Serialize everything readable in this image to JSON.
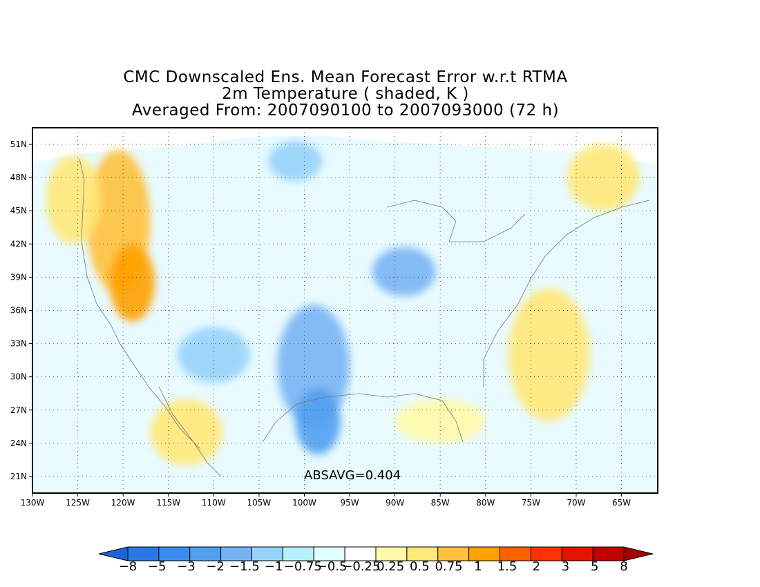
{
  "title": {
    "line1": "CMC Downscaled Ens. Mean Forecast Error w.r.t RTMA",
    "line2": "2m Temperature ( shaded, K )",
    "line3": "Averaged From: 2007090100 to 2007093000 (72 h)"
  },
  "annotation": "ABSAVG=0.404",
  "map": {
    "lon_range": [
      -130,
      -61
    ],
    "lat_range": [
      19.5,
      52.5
    ],
    "lon_labels": [
      "130W",
      "125W",
      "120W",
      "115W",
      "110W",
      "105W",
      "100W",
      "95W",
      "90W",
      "85W",
      "80W",
      "75W",
      "70W",
      "65W"
    ],
    "lon_values": [
      -130,
      -125,
      -120,
      -115,
      -110,
      -105,
      -100,
      -95,
      -90,
      -85,
      -80,
      -75,
      -70,
      -65
    ],
    "lat_labels": [
      "21N",
      "24N",
      "27N",
      "30N",
      "33N",
      "36N",
      "39N",
      "42N",
      "45N",
      "48N",
      "51N"
    ],
    "lat_values": [
      21,
      24,
      27,
      30,
      33,
      36,
      39,
      42,
      45,
      48,
      51
    ],
    "grid": true,
    "projection": "lat-lon"
  },
  "colorbar": {
    "labels": [
      "-8",
      "-5",
      "-3",
      "-2",
      "-1.5",
      "-1",
      "-0.75",
      "-0.5",
      "-0.25",
      "0.25",
      "0.5",
      "0.75",
      "1",
      "1.5",
      "2",
      "3",
      "5",
      "8"
    ],
    "colors": [
      "#1e64d8",
      "#2a78e8",
      "#3c8cf0",
      "#50a0f0",
      "#78b4f4",
      "#96d2fa",
      "#b4f0fa",
      "#e1ffff",
      "#ffffff",
      "#fffaaa",
      "#ffe878",
      "#ffc03c",
      "#ffa000",
      "#ff6000",
      "#ff3200",
      "#e11400",
      "#c00000",
      "#a50000"
    ]
  },
  "regions": [
    {
      "label": "pacific-nw-warm",
      "lon": -120.5,
      "lat": 44,
      "rx": 3.5,
      "ry": 6.5,
      "color": "#ffc03c"
    },
    {
      "label": "california-warm",
      "lon": -119,
      "lat": 38.5,
      "rx": 2.5,
      "ry": 3.5,
      "color": "#ffa000"
    },
    {
      "label": "nw-coast-mild",
      "lon": -125.5,
      "lat": 46,
      "rx": 3,
      "ry": 4,
      "color": "#ffe878"
    },
    {
      "label": "baja-warm",
      "lon": -113,
      "lat": 25,
      "rx": 4,
      "ry": 3,
      "color": "#ffe878"
    },
    {
      "label": "great-plains-cool",
      "lon": -99,
      "lat": 31,
      "rx": 4,
      "ry": 5.5,
      "color": "#78b4f4"
    },
    {
      "label": "texas-cool",
      "lon": -98.5,
      "lat": 26,
      "rx": 2.5,
      "ry": 3,
      "color": "#50a0f0"
    },
    {
      "label": "midwest-cool",
      "lon": -89,
      "lat": 39.5,
      "rx": 3.5,
      "ry": 2.2,
      "color": "#78b4f4"
    },
    {
      "label": "north-plains-cool",
      "lon": -101,
      "lat": 49.5,
      "rx": 3,
      "ry": 1.8,
      "color": "#96d2fa"
    },
    {
      "label": "southwest-cool",
      "lon": -110,
      "lat": 32,
      "rx": 4,
      "ry": 2.5,
      "color": "#96d2fa"
    },
    {
      "label": "atlantic-warm",
      "lon": -73,
      "lat": 32,
      "rx": 4.5,
      "ry": 6,
      "color": "#ffe878"
    },
    {
      "label": "northeast-warm",
      "lon": -67,
      "lat": 48,
      "rx": 4,
      "ry": 3,
      "color": "#ffe878"
    },
    {
      "label": "gulf-mild",
      "lon": -85,
      "lat": 26,
      "rx": 5,
      "ry": 2,
      "color": "#fffaaa"
    }
  ]
}
